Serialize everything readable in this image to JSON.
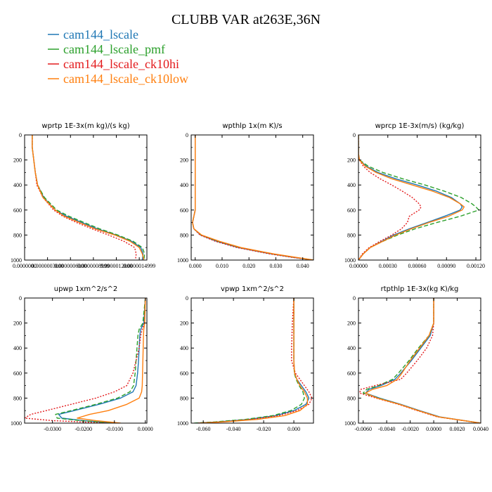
{
  "title": "CLUBB VAR at263E,36N",
  "legend": [
    {
      "label": "cam144_lscale",
      "color": "#1f77b4"
    },
    {
      "label": "cam144_lscale_pmf",
      "color": "#2ca02c"
    },
    {
      "label": "cam144_lscale_ck10hi",
      "color": "#e31a1c"
    },
    {
      "label": "cam144_lscale_ck10low",
      "color": "#ff7f0e"
    }
  ],
  "chart_data": [
    {
      "type": "line",
      "title": "wprtp  1E-3x(m kg)/(s kg)",
      "xlim": [
        0.0,
        1.6e-06
      ],
      "ylim": [
        1000,
        0
      ],
      "xticks": [
        "0.0000000",
        "0.0000003000",
        "0.0000006000",
        "0.0000008999",
        "0.0000012000",
        "0.0000014999"
      ],
      "xtick_values": [
        0.0,
        3e-07,
        6e-07,
        9e-07,
        1.2e-06,
        1.5e-06
      ],
      "yticks": [
        0,
        200,
        400,
        600,
        800,
        1000
      ],
      "y": [
        0,
        100,
        200,
        300,
        400,
        500,
        600,
        650,
        700,
        750,
        800,
        850,
        900,
        950,
        1000
      ],
      "series": [
        {
          "name": "cam144_lscale",
          "color": "#1f77b4",
          "dash": "",
          "values": [
            1e-07,
            1e-07,
            1.2e-07,
            1.4e-07,
            1.7e-07,
            2.5e-07,
            4e-07,
            5.5e-07,
            7.5e-07,
            9.5e-07,
            1.2e-06,
            1.4e-06,
            1.52e-06,
            1.55e-06,
            1.54e-06
          ]
        },
        {
          "name": "cam144_lscale_pmf",
          "color": "#2ca02c",
          "dash": "6 3",
          "values": [
            1e-07,
            1e-07,
            1.2e-07,
            1.4e-07,
            1.7e-07,
            2.6e-07,
            4.2e-07,
            5.8e-07,
            7.8e-07,
            9.8e-07,
            1.22e-06,
            1.42e-06,
            1.54e-06,
            1.57e-06,
            1.56e-06
          ]
        },
        {
          "name": "cam144_lscale_ck10hi",
          "color": "#e31a1c",
          "dash": "2 2",
          "values": [
            1e-07,
            1e-07,
            1.2e-07,
            1.4e-07,
            1.6e-07,
            2.4e-07,
            3.8e-07,
            5e-07,
            6.8e-07,
            8.8e-07,
            1.1e-06,
            1.3e-06,
            1.44e-06,
            1.46e-06,
            1.45e-06
          ]
        },
        {
          "name": "cam144_lscale_ck10low",
          "color": "#ff7f0e",
          "dash": "",
          "values": [
            1e-07,
            1e-07,
            1.2e-07,
            1.4e-07,
            1.7e-07,
            2.4e-07,
            4e-07,
            5.2e-07,
            7.2e-07,
            9.2e-07,
            1.18e-06,
            1.38e-06,
            1.5e-06,
            1.54e-06,
            1.56e-06
          ]
        }
      ]
    },
    {
      "type": "line",
      "title": "wpthlp  1x(m K)/s",
      "xlim": [
        -0.0015,
        0.044
      ],
      "ylim": [
        1000,
        0
      ],
      "xticks": [
        "0.000",
        "0.010",
        "0.020",
        "0.030",
        "0.040"
      ],
      "xtick_values": [
        0.0,
        0.01,
        0.02,
        0.03,
        0.04
      ],
      "yticks": [
        0,
        200,
        400,
        600,
        800,
        1000
      ],
      "y": [
        0,
        200,
        400,
        600,
        700,
        750,
        800,
        850,
        900,
        950,
        980,
        1000
      ],
      "series": [
        {
          "name": "cam144_lscale",
          "color": "#1f77b4",
          "dash": "",
          "values": [
            0.0,
            0.0,
            0.0,
            0.0,
            -0.001,
            -0.0005,
            0.002,
            0.008,
            0.016,
            0.028,
            0.037,
            0.044
          ]
        },
        {
          "name": "cam144_lscale_pmf",
          "color": "#2ca02c",
          "dash": "6 3",
          "values": [
            0.0,
            0.0,
            0.0,
            0.0,
            -0.001,
            -0.0005,
            0.0022,
            0.0085,
            0.0165,
            0.0285,
            0.0375,
            0.044
          ]
        },
        {
          "name": "cam144_lscale_ck10hi",
          "color": "#e31a1c",
          "dash": "2 2",
          "values": [
            0.0,
            0.0,
            0.0,
            0.0,
            -0.001,
            -0.0005,
            0.0018,
            0.0075,
            0.0155,
            0.0275,
            0.0365,
            0.044
          ]
        },
        {
          "name": "cam144_lscale_ck10low",
          "color": "#ff7f0e",
          "dash": "",
          "values": [
            0.0,
            0.0,
            0.0,
            0.0,
            -0.001,
            -0.0005,
            0.0024,
            0.009,
            0.017,
            0.029,
            0.038,
            0.044
          ]
        }
      ]
    },
    {
      "type": "line",
      "title": "wprcp  1E-3x(m/s) (kg/kg)",
      "xlim": [
        0.0,
        0.00125
      ],
      "ylim": [
        1000,
        0
      ],
      "xticks": [
        "0.00000",
        "0.00030",
        "0.00060",
        "0.00090",
        "0.00120"
      ],
      "xtick_values": [
        0.0,
        0.0003,
        0.0006,
        0.0009,
        0.0012
      ],
      "yticks": [
        0,
        200,
        400,
        600,
        800,
        1000
      ],
      "y": [
        0,
        150,
        200,
        250,
        300,
        350,
        400,
        450,
        500,
        550,
        575,
        600,
        650,
        700,
        750,
        800,
        850,
        900,
        950,
        1000
      ],
      "series": [
        {
          "name": "cam144_lscale",
          "color": "#1f77b4",
          "dash": "",
          "values": [
            0.0,
            0.0,
            1e-05,
            8e-05,
            0.0002,
            0.00038,
            0.0006,
            0.0008,
            0.00095,
            0.00104,
            0.00106,
            0.00104,
            0.00088,
            0.0007,
            0.00052,
            0.00036,
            0.00024,
            0.00012,
            5e-05,
            0.0
          ]
        },
        {
          "name": "cam144_lscale_pmf",
          "color": "#2ca02c",
          "dash": "6 3",
          "values": [
            0.0,
            0.0,
            1e-05,
            0.0001,
            0.00025,
            0.00045,
            0.00068,
            0.00088,
            0.00105,
            0.00116,
            0.0012,
            0.00123,
            0.00104,
            0.0008,
            0.00058,
            0.0004,
            0.00025,
            0.00012,
            5e-05,
            0.0
          ]
        },
        {
          "name": "cam144_lscale_ck10hi",
          "color": "#e31a1c",
          "dash": "2 2",
          "values": [
            0.0,
            0.0,
            1e-05,
            5e-05,
            0.00012,
            0.00022,
            0.00034,
            0.00045,
            0.00055,
            0.00062,
            0.00064,
            0.00062,
            0.00052,
            0.0005,
            0.00044,
            0.00034,
            0.00022,
            0.00011,
            4e-05,
            0.0
          ]
        },
        {
          "name": "cam144_lscale_ck10low",
          "color": "#ff7f0e",
          "dash": "",
          "values": [
            0.0,
            0.0,
            1e-05,
            7e-05,
            0.00018,
            0.00034,
            0.00055,
            0.00076,
            0.00093,
            0.00104,
            0.00108,
            0.00106,
            0.00092,
            0.00072,
            0.00054,
            0.00038,
            0.00025,
            0.00012,
            5e-05,
            0.0
          ]
        }
      ]
    },
    {
      "type": "line",
      "title": "upwp  1xm^2/s^2",
      "xlim": [
        -0.039,
        0.0005
      ],
      "ylim": [
        1000,
        0
      ],
      "xticks": [
        "-0.0300",
        "-0.0200",
        "-0.0100",
        "0.0000"
      ],
      "xtick_values": [
        -0.03,
        -0.02,
        -0.01,
        0.0
      ],
      "yticks": [
        0,
        200,
        400,
        600,
        800,
        1000
      ],
      "y": [
        0,
        200,
        250,
        300,
        400,
        500,
        600,
        700,
        750,
        800,
        850,
        900,
        930,
        960,
        980,
        1000
      ],
      "series": [
        {
          "name": "cam144_lscale",
          "color": "#1f77b4",
          "dash": "",
          "values": [
            0.0,
            -0.0005,
            -0.0015,
            -0.0018,
            -0.002,
            -0.0022,
            -0.0025,
            -0.003,
            -0.004,
            -0.008,
            -0.015,
            -0.023,
            -0.028,
            -0.027,
            -0.02,
            -0.01
          ]
        },
        {
          "name": "cam144_lscale_pmf",
          "color": "#2ca02c",
          "dash": "6 3",
          "values": [
            0.0,
            -0.0008,
            -0.002,
            -0.0024,
            -0.0027,
            -0.003,
            -0.0033,
            -0.0038,
            -0.005,
            -0.009,
            -0.016,
            -0.024,
            -0.029,
            -0.0285,
            -0.021,
            -0.01
          ]
        },
        {
          "name": "cam144_lscale_ck10hi",
          "color": "#e31a1c",
          "dash": "2 2",
          "values": [
            0.0,
            -0.0003,
            -0.001,
            -0.0015,
            -0.002,
            -0.003,
            -0.004,
            -0.006,
            -0.01,
            -0.016,
            -0.024,
            -0.032,
            -0.037,
            -0.039,
            -0.03,
            -0.012
          ]
        },
        {
          "name": "cam144_lscale_ck10low",
          "color": "#ff7f0e",
          "dash": "",
          "values": [
            0.0,
            -0.0002,
            -0.0005,
            -0.0006,
            -0.0007,
            -0.0008,
            -0.0009,
            -0.001,
            -0.0012,
            -0.002,
            -0.006,
            -0.012,
            -0.018,
            -0.022,
            -0.016,
            -0.008
          ]
        }
      ]
    },
    {
      "type": "line",
      "title": "vpwp  1xm^2/s^2",
      "xlim": [
        -0.068,
        0.013
      ],
      "ylim": [
        1000,
        0
      ],
      "xticks": [
        "-0.060",
        "-0.040",
        "-0.020",
        "0.000"
      ],
      "xtick_values": [
        -0.06,
        -0.04,
        -0.02,
        0.0
      ],
      "yticks": [
        0,
        200,
        400,
        600,
        800,
        1000
      ],
      "y": [
        0,
        200,
        400,
        500,
        600,
        650,
        700,
        750,
        800,
        850,
        900,
        940,
        970,
        990,
        1000
      ],
      "series": [
        {
          "name": "cam144_lscale",
          "color": "#1f77b4",
          "dash": "",
          "values": [
            0.0,
            0.0,
            0.0,
            0.0,
            0.0005,
            0.002,
            0.005,
            0.008,
            0.01,
            0.008,
            0.0,
            -0.012,
            -0.03,
            -0.05,
            -0.065
          ]
        },
        {
          "name": "cam144_lscale_pmf",
          "color": "#2ca02c",
          "dash": "6 3",
          "values": [
            0.0,
            0.0,
            0.0,
            0.0,
            0.0003,
            0.0015,
            0.0035,
            0.006,
            0.007,
            0.005,
            -0.002,
            -0.014,
            -0.032,
            -0.052,
            -0.066
          ]
        },
        {
          "name": "cam144_lscale_ck10hi",
          "color": "#e31a1c",
          "dash": "2 2",
          "values": [
            0.0,
            -0.001,
            -0.0015,
            -0.0015,
            0.001,
            0.004,
            0.007,
            0.01,
            0.012,
            0.01,
            0.002,
            -0.01,
            -0.028,
            -0.048,
            -0.064
          ]
        },
        {
          "name": "cam144_lscale_ck10low",
          "color": "#ff7f0e",
          "dash": "",
          "values": [
            0.0,
            0.0,
            0.0,
            0.0,
            0.0005,
            0.002,
            0.004,
            0.007,
            0.009,
            0.009,
            0.004,
            -0.006,
            -0.024,
            -0.046,
            -0.063
          ]
        }
      ]
    },
    {
      "type": "line",
      "title": "rtpthlp  1E-3x(kg K)/kg",
      "xlim": [
        -0.0064,
        0.004
      ],
      "ylim": [
        1000,
        0
      ],
      "xticks": [
        "-0.0060",
        "-0.0040",
        "-0.0020",
        "0.0000",
        "0.0020",
        "0.0040"
      ],
      "xtick_values": [
        -0.006,
        -0.004,
        -0.002,
        0.0,
        0.002,
        0.004
      ],
      "yticks": [
        0,
        200,
        400,
        600,
        800,
        1000
      ],
      "y": [
        0,
        200,
        300,
        400,
        500,
        600,
        650,
        700,
        730,
        760,
        800,
        850,
        900,
        950,
        1000
      ],
      "series": [
        {
          "name": "cam144_lscale",
          "color": "#1f77b4",
          "dash": "",
          "values": [
            0.0,
            0.0,
            -0.0003,
            -0.0011,
            -0.0019,
            -0.0028,
            -0.0033,
            -0.0045,
            -0.0055,
            -0.0058,
            -0.0046,
            -0.0028,
            -0.0012,
            0.0005,
            0.004
          ]
        },
        {
          "name": "cam144_lscale_pmf",
          "color": "#2ca02c",
          "dash": "6 3",
          "values": [
            0.0,
            0.0,
            -0.0004,
            -0.0013,
            -0.0021,
            -0.003,
            -0.0035,
            -0.0047,
            -0.0057,
            -0.006,
            -0.0047,
            -0.0029,
            -0.0013,
            0.0004,
            0.004
          ]
        },
        {
          "name": "cam144_lscale_ck10hi",
          "color": "#e31a1c",
          "dash": "2 2",
          "values": [
            0.0,
            0.0,
            -0.0001,
            -0.0006,
            -0.0014,
            -0.0023,
            -0.0028,
            -0.005,
            -0.0062,
            -0.0063,
            -0.0049,
            -0.003,
            -0.0014,
            0.0003,
            0.004
          ]
        },
        {
          "name": "cam144_lscale_ck10low",
          "color": "#ff7f0e",
          "dash": "",
          "values": [
            0.0,
            0.0,
            -0.0004,
            -0.0012,
            -0.002,
            -0.0027,
            -0.0031,
            -0.004,
            -0.0052,
            -0.0058,
            -0.0048,
            -0.0029,
            -0.0013,
            0.0004,
            0.004
          ]
        }
      ]
    }
  ]
}
